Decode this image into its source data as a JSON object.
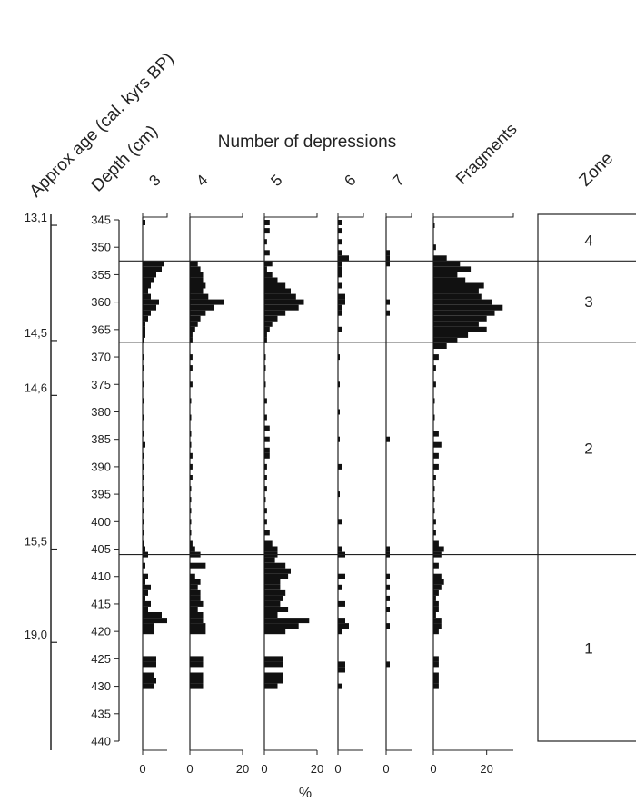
{
  "chart_data": {
    "type": "bar",
    "orientation": "horizontal",
    "title": "",
    "group_header": "Number of depressions",
    "xlabel": "%",
    "age_axis": {
      "label": "Approx age (cal. kyrs BP)",
      "ticks": [
        {
          "depth": 346,
          "label": "13,1"
        },
        {
          "depth": 367,
          "label": "14,5"
        },
        {
          "depth": 377,
          "label": "14,6"
        },
        {
          "depth": 405,
          "label": "15,5"
        },
        {
          "depth": 422,
          "label": "19,0"
        }
      ]
    },
    "depth_axis": {
      "label": "Depth (cm)",
      "min": 345,
      "max": 440,
      "ticks": [
        345,
        350,
        355,
        360,
        365,
        370,
        375,
        380,
        385,
        390,
        395,
        400,
        405,
        410,
        415,
        420,
        425,
        430,
        435,
        440
      ]
    },
    "zone_boundaries": [
      352.5,
      367.3,
      406
    ],
    "zone_axis": {
      "label": "Zone",
      "zones": [
        {
          "label": "4",
          "top": 345,
          "bottom": 352.5
        },
        {
          "label": "3",
          "top": 352.5,
          "bottom": 367.3
        },
        {
          "label": "2",
          "top": 367.3,
          "bottom": 406
        },
        {
          "label": "1",
          "top": 406,
          "bottom": 440
        }
      ]
    },
    "series": [
      {
        "name": "3",
        "xmax": 9,
        "ticks": [
          {
            "v": 0,
            "label": "0"
          }
        ],
        "depths": [
          345.5,
          353,
          354,
          355,
          356,
          357,
          358,
          359,
          360,
          361,
          362,
          363,
          364,
          365,
          366,
          367,
          370,
          372,
          375,
          378,
          381,
          384,
          386,
          388,
          390,
          392,
          394,
          396,
          398,
          400,
          402,
          404,
          405,
          406,
          408,
          410,
          411,
          412,
          413,
          414,
          415,
          416,
          417,
          418,
          419,
          420,
          425,
          426,
          428,
          429,
          430
        ],
        "values": [
          1,
          8,
          7,
          5,
          4,
          3,
          2,
          3,
          6,
          5,
          3,
          2,
          1,
          1,
          1,
          0.5,
          0.5,
          0.5,
          0.5,
          0.5,
          0.5,
          0.5,
          1,
          0.5,
          0.5,
          0.5,
          0.5,
          0.5,
          0.5,
          0.5,
          0.5,
          0.5,
          1,
          2,
          1,
          2,
          1,
          3,
          2,
          1,
          3,
          2,
          7,
          9,
          4,
          4,
          5,
          5,
          4,
          5,
          4
        ]
      },
      {
        "name": "4",
        "xmax": 20,
        "ticks": [
          {
            "v": 0,
            "label": "0"
          },
          {
            "v": 20,
            "label": "20"
          }
        ],
        "depths": [
          353,
          354,
          355,
          356,
          357,
          358,
          359,
          360,
          361,
          362,
          363,
          364,
          365,
          366,
          367,
          370,
          372,
          375,
          378,
          381,
          384,
          386,
          388,
          390,
          392,
          394,
          396,
          398,
          400,
          402,
          404,
          405,
          406,
          408,
          410,
          411,
          412,
          413,
          414,
          415,
          416,
          417,
          418,
          419,
          420,
          425,
          426,
          428,
          429,
          430
        ],
        "values": [
          3,
          4,
          5,
          5,
          6,
          5,
          7,
          13,
          9,
          6,
          4,
          3,
          2,
          1,
          1,
          1,
          1,
          1,
          0.5,
          0.5,
          0.5,
          0.5,
          1,
          1,
          1,
          0.5,
          0.5,
          0.5,
          0.5,
          0.5,
          1,
          2,
          4,
          6,
          2,
          4,
          3,
          4,
          4,
          5,
          3,
          5,
          5,
          6,
          6,
          5,
          5,
          5,
          5,
          5
        ]
      },
      {
        "name": "5",
        "xmax": 20,
        "ticks": [
          {
            "v": 0,
            "label": "0"
          },
          {
            "v": 20,
            "label": "20"
          }
        ],
        "depths": [
          345.5,
          347,
          349,
          351,
          353,
          354,
          355,
          356,
          357,
          358,
          359,
          360,
          361,
          362,
          363,
          364,
          365,
          366,
          367,
          370,
          372,
          375,
          378,
          381,
          383,
          385,
          387,
          388,
          390,
          392,
          394,
          396,
          398,
          400,
          402,
          404,
          405,
          406,
          407,
          408,
          409,
          410,
          411,
          412,
          413,
          414,
          415,
          416,
          417,
          418,
          419,
          420,
          425,
          426,
          428,
          429,
          430
        ],
        "values": [
          2,
          2,
          1,
          2,
          3,
          1,
          3,
          5,
          8,
          10,
          12,
          15,
          13,
          8,
          5,
          3,
          2,
          1,
          1,
          0.5,
          0.5,
          0.5,
          1,
          1,
          2,
          2,
          2,
          2,
          1,
          1,
          1,
          0.5,
          1,
          1,
          2,
          3,
          5,
          5,
          4,
          8,
          10,
          9,
          6,
          6,
          8,
          7,
          6,
          9,
          5,
          17,
          13,
          8,
          7,
          7,
          7,
          7,
          5
        ]
      },
      {
        "name": "6",
        "xmax": 7,
        "ticks": [
          {
            "v": 0,
            "label": "0"
          }
        ],
        "depths": [
          345.5,
          347,
          349,
          351,
          352,
          353,
          354,
          355,
          357,
          359,
          360,
          361,
          362,
          365,
          370,
          375,
          380,
          385,
          390,
          395,
          400,
          405,
          406,
          410,
          412,
          415,
          418,
          419,
          420,
          426,
          427,
          430
        ],
        "values": [
          1,
          1,
          1,
          1,
          3,
          1,
          1,
          1,
          1,
          2,
          2,
          1,
          1,
          1,
          0.5,
          0.5,
          0.5,
          0.5,
          1,
          0.5,
          1,
          1,
          2,
          2,
          1,
          2,
          2,
          3,
          1,
          2,
          2,
          1
        ]
      },
      {
        "name": "7",
        "xmax": 7,
        "ticks": [
          {
            "v": 0,
            "label": "0"
          }
        ],
        "depths": [
          351,
          352,
          353,
          360,
          362,
          385,
          405,
          406,
          410,
          412,
          414,
          416,
          419,
          426
        ],
        "values": [
          1,
          1,
          1,
          1,
          1,
          1,
          1,
          1,
          1,
          1,
          1,
          1,
          1,
          1
        ]
      },
      {
        "name": "Fragments",
        "xmax": 30,
        "ticks": [
          {
            "v": 0,
            "label": "0"
          },
          {
            "v": 20,
            "label": "20"
          }
        ],
        "depths": [
          346,
          350,
          352,
          353,
          354,
          355,
          356,
          357,
          358,
          359,
          360,
          361,
          362,
          363,
          364,
          365,
          366,
          367,
          368,
          370,
          372,
          375,
          378,
          381,
          384,
          386,
          388,
          390,
          392,
          394,
          396,
          398,
          400,
          402,
          404,
          405,
          406,
          408,
          410,
          411,
          412,
          413,
          414,
          415,
          416,
          417,
          418,
          419,
          420,
          425,
          426,
          428,
          429,
          430
        ],
        "values": [
          0.5,
          1,
          5,
          10,
          14,
          9,
          12,
          19,
          17,
          18,
          22,
          26,
          23,
          20,
          17,
          20,
          13,
          9,
          5,
          2,
          1,
          1,
          0.5,
          0.5,
          2,
          3,
          2,
          2,
          1,
          0.5,
          0.5,
          0.5,
          1,
          1,
          2,
          4,
          3,
          2,
          3,
          4,
          3,
          2,
          1,
          2,
          2,
          1,
          3,
          3,
          2,
          2,
          2,
          2,
          2,
          2
        ]
      }
    ]
  }
}
